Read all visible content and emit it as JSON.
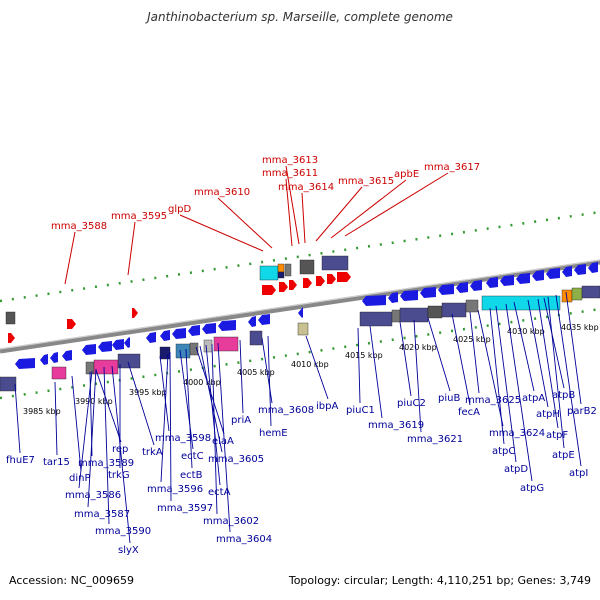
{
  "title": "Janthinobacterium sp. Marseille, complete genome",
  "accession": "Accession: NC_009659",
  "summary": "Topology: circular; Length: 4,110,251 bp; Genes: 3,749",
  "colors": {
    "forward_gene": "#ee0000",
    "reverse_gene": "#1a1ae0",
    "top_label": "#cc0000",
    "bottom_label": "#000099",
    "tick": "#339933",
    "backbone": "#888888"
  },
  "kbp_ticks": [
    "3985 kbp",
    "3990 kbp",
    "3995 kbp",
    "4000 kbp",
    "4005 kbp",
    "4010 kbp",
    "4015 kbp",
    "4020 kbp",
    "4025 kbp",
    "4030 kbp",
    "4035 kbp"
  ],
  "top_labels": [
    "mma_3588",
    "mma_3595",
    "glpD",
    "mma_3610",
    "mma_3613",
    "mma_3611",
    "mma_3614",
    "mma_3615",
    "apbE",
    "mma_3617"
  ],
  "bottom_labels": [
    "fhuE7",
    "tar15",
    "dinP",
    "mma_3589",
    "rep",
    "mma_3586",
    "mma_3587",
    "mma_3590",
    "slyX",
    "trkG",
    "trkA",
    "mma_3598",
    "mma_3596",
    "mma_3597",
    "ectC",
    "ectB",
    "elaA",
    "mma_3605",
    "ectA",
    "mma_3602",
    "mma_3604",
    "priA",
    "mma_3608",
    "hemE",
    "ibpA",
    "piuC1",
    "mma_3619",
    "piuC2",
    "mma_3621",
    "piuB",
    "fecA",
    "mma_3625",
    "mma_3624",
    "atpC",
    "atpD",
    "atpG",
    "atpA",
    "atpH",
    "atpB",
    "atpF",
    "atpE",
    "atpI",
    "parB2"
  ]
}
